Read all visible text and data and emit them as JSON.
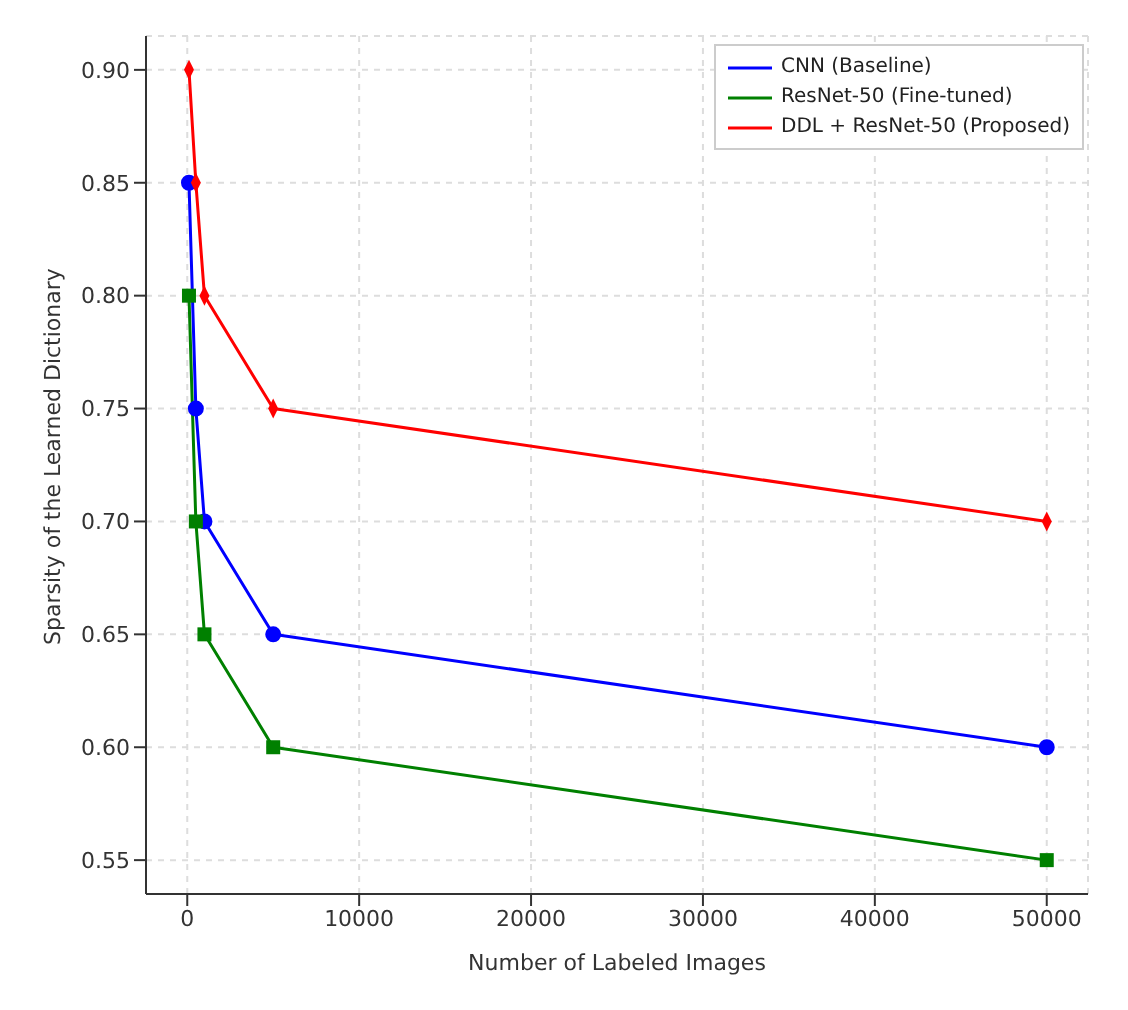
{
  "chart_data": {
    "type": "line",
    "xlabel": "Number of Labeled Images",
    "ylabel": "Sparsity of the Learned Dictionary",
    "x": [
      100,
      500,
      1000,
      5000,
      50000
    ],
    "series": [
      {
        "name": "CNN (Baseline)",
        "color": "#0000ff",
        "marker": "circle",
        "values": [
          0.85,
          0.75,
          0.7,
          0.65,
          0.6
        ]
      },
      {
        "name": "ResNet-50 (Fine-tuned)",
        "color": "#008000",
        "marker": "square",
        "values": [
          0.8,
          0.7,
          0.65,
          0.6,
          0.55
        ]
      },
      {
        "name": "DDL + ResNet-50 (Proposed)",
        "color": "#ff0000",
        "marker": "diamond",
        "values": [
          0.9,
          0.85,
          0.8,
          0.75,
          0.7
        ]
      }
    ],
    "xlim": [
      -2400,
      52400
    ],
    "xticks": [
      0,
      10000,
      20000,
      30000,
      40000,
      50000
    ],
    "ylim": [
      0.535,
      0.915
    ],
    "yticks": [
      0.55,
      {
        "value": 0.6,
        "label": "0.60"
      },
      0.65,
      {
        "value": 0.7,
        "label": "0.70"
      },
      0.75,
      {
        "value": 0.8,
        "label": "0.80"
      },
      0.85,
      {
        "value": 0.9,
        "label": "0.90"
      }
    ],
    "grid": true,
    "legend": "top right",
    "line_style": "solid"
  }
}
